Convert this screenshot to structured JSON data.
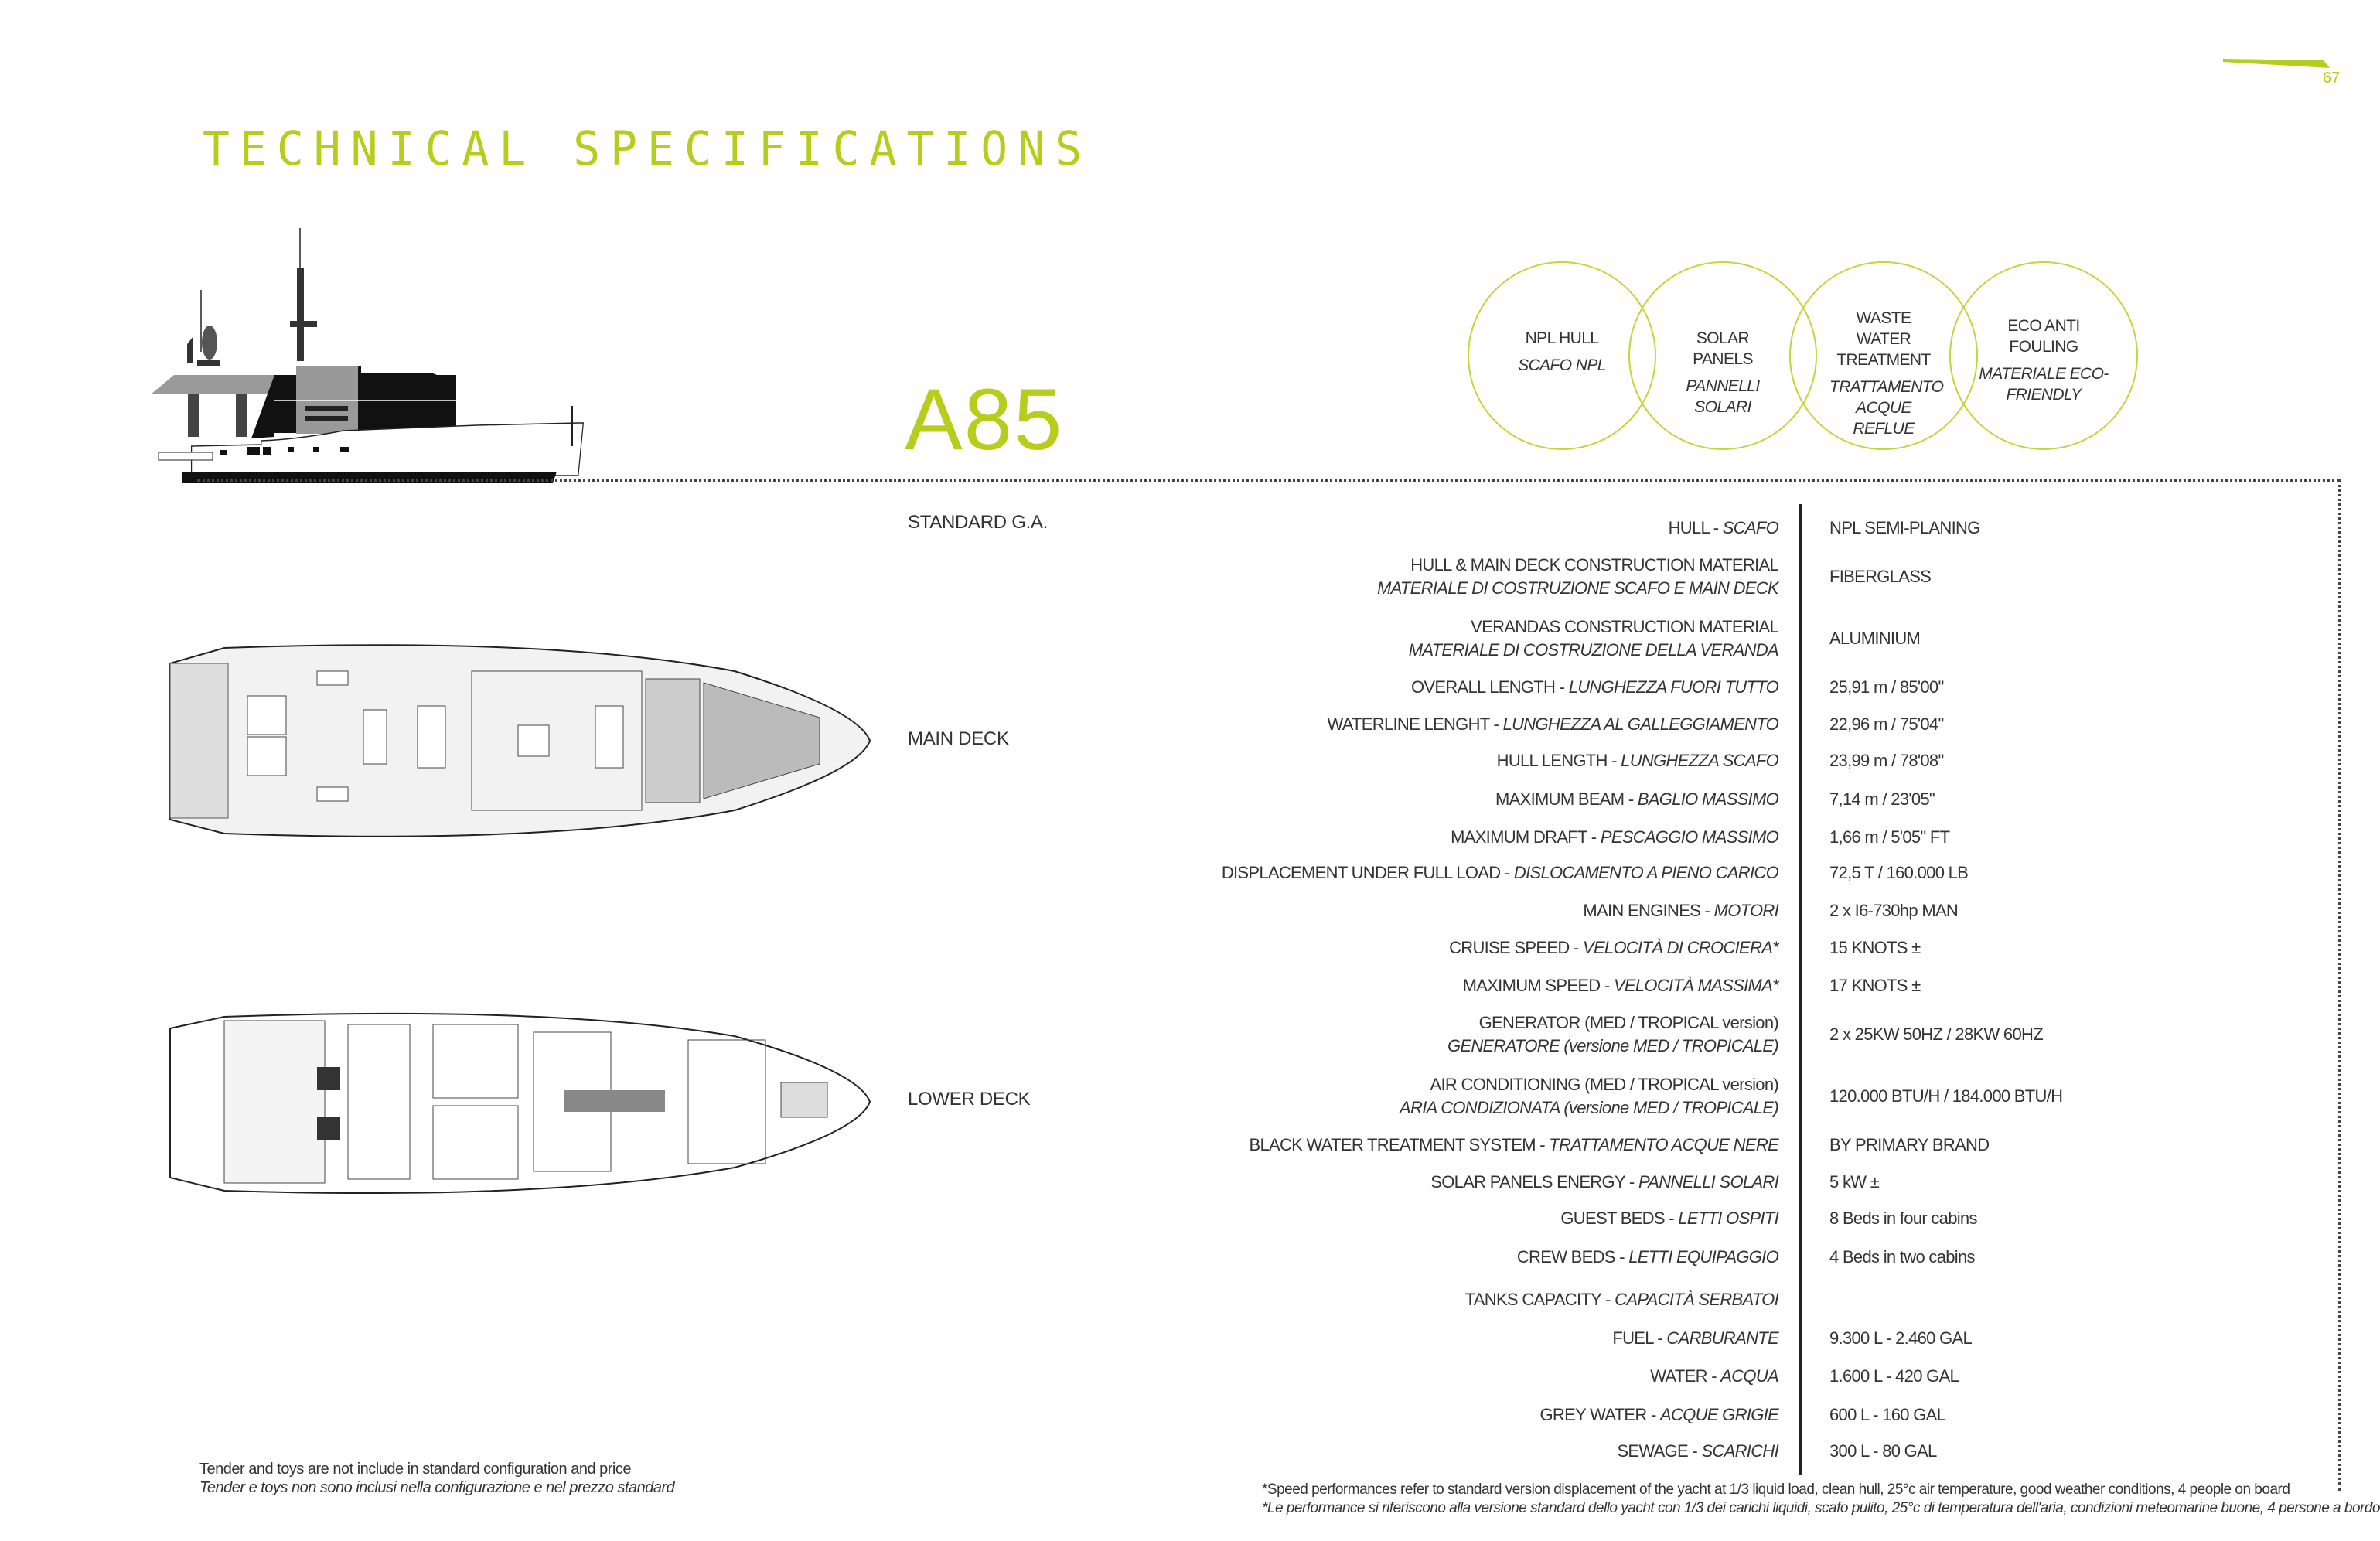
{
  "page": {
    "title": "TECHNICAL SPECIFICATIONS",
    "page_number": "67",
    "model": "A85",
    "accent_color": "#b8cc1c"
  },
  "sections": {
    "standard_ga": "STANDARD G.A.",
    "main_deck": "MAIN DECK",
    "lower_deck": "LOWER DECK"
  },
  "features": [
    {
      "en": "NPL HULL",
      "it": "SCAFO NPL"
    },
    {
      "en": "SOLAR PANELS",
      "it": "PANNELLI SOLARI"
    },
    {
      "en": "WASTE WATER TREATMENT",
      "it": "TRATTAMENTO ACQUE REFLUE"
    },
    {
      "en": "ECO ANTI FOULING",
      "it": "MATERIALE ECO-FRIENDLY"
    }
  ],
  "specs": [
    {
      "en": "HULL",
      "it": "SCAFO",
      "value": "NPL SEMI-PLANING",
      "stacked": false
    },
    {
      "en": "HULL & MAIN DECK CONSTRUCTION MATERIAL",
      "it": "MATERIALE DI COSTRUZIONE SCAFO E MAIN DECK",
      "value": "FIBERGLASS",
      "stacked": true
    },
    {
      "en": "VERANDAS CONSTRUCTION MATERIAL",
      "it": "MATERIALE DI COSTRUZIONE DELLA VERANDA",
      "value": "ALUMINIUM",
      "stacked": true
    },
    {
      "en": "OVERALL LENGTH",
      "it": "LUNGHEZZA FUORI TUTTO",
      "value": "25,91 m / 85'00\"",
      "stacked": false
    },
    {
      "en": "WATERLINE LENGHT",
      "it": "LUNGHEZZA AL GALLEGGIAMENTO",
      "value": "22,96 m / 75'04\"",
      "stacked": false
    },
    {
      "en": "HULL LENGTH",
      "it": "LUNGHEZZA SCAFO",
      "value": "23,99 m / 78'08\"",
      "stacked": false
    },
    {
      "en": "MAXIMUM BEAM",
      "it": "BAGLIO MASSIMO",
      "value": "7,14 m / 23'05\"",
      "stacked": false
    },
    {
      "en": "MAXIMUM DRAFT",
      "it": "PESCAGGIO MASSIMO",
      "value": "1,66 m / 5'05\" FT",
      "stacked": false
    },
    {
      "en": "DISPLACEMENT UNDER FULL LOAD",
      "it": "DISLOCAMENTO A PIENO CARICO",
      "value": "72,5 T / 160.000 LB",
      "stacked": false
    },
    {
      "en": "MAIN ENGINES",
      "it": "MOTORI",
      "value": "2 x I6-730hp MAN",
      "stacked": false
    },
    {
      "en": "CRUISE SPEED",
      "it": "VELOCITÀ DI CROCIERA*",
      "value": "15 KNOTS ±",
      "stacked": false
    },
    {
      "en": "MAXIMUM SPEED",
      "it": "VELOCITÀ MASSIMA*",
      "value": "17 KNOTS ±",
      "stacked": false
    },
    {
      "en": "GENERATOR (MED / TROPICAL version)",
      "it": "GENERATORE (versione MED / TROPICALE)",
      "value": "2 x 25KW 50HZ / 28KW 60HZ",
      "stacked": true
    },
    {
      "en": "AIR CONDITIONING (MED / TROPICAL version)",
      "it": "ARIA CONDIZIONATA (versione MED / TROPICALE)",
      "value": "120.000 BTU/H / 184.000 BTU/H",
      "stacked": true
    },
    {
      "en": "BLACK WATER TREATMENT SYSTEM",
      "it": "TRATTAMENTO ACQUE NERE",
      "value": "BY PRIMARY BRAND",
      "stacked": false
    },
    {
      "en": "SOLAR PANELS ENERGY ",
      "it": "PANNELLI SOLARI",
      "value": "5 kW ±",
      "stacked": false
    },
    {
      "en": "GUEST BEDS",
      "it": "LETTI OSPITI",
      "value": "8 Beds in four cabins",
      "stacked": false
    },
    {
      "en": "CREW BEDS",
      "it": "LETTI EQUIPAGGIO",
      "value": "4 Beds in two cabins",
      "stacked": false
    },
    {
      "en": "TANKS CAPACITY",
      "it": "CAPACITÀ SERBATOI",
      "value": "",
      "stacked": false
    },
    {
      "en": "FUEL",
      "it": "CARBURANTE",
      "value": "9.300 L - 2.460 GAL",
      "stacked": false
    },
    {
      "en": "WATER",
      "it": "ACQUA",
      "value": "1.600 L - 420 GAL",
      "stacked": false
    },
    {
      "en": "GREY WATER",
      "it": "ACQUE GRIGIE",
      "value": "600 L - 160 GAL",
      "stacked": false
    },
    {
      "en": "SEWAGE",
      "it": "SCARICHI",
      "value": "300 L - 80 GAL",
      "stacked": false
    }
  ],
  "notes": {
    "tender_en": "Tender and toys are not include in standard configuration and price",
    "tender_it": "Tender e toys non sono inclusi nella configurazione e nel prezzo standard",
    "speed_en": "*Speed performances refer to standard version displacement of the yacht at 1/3 liquid load, clean hull, 25°c air temperature, good weather conditions, 4 people on board",
    "speed_it": "*Le performance si riferiscono alla versione standard dello yacht con 1/3 dei carichi liquidi, scafo pulito, 25°c di temperatura dell'aria, condizioni meteomarine buone, 4 persone a bordo"
  }
}
